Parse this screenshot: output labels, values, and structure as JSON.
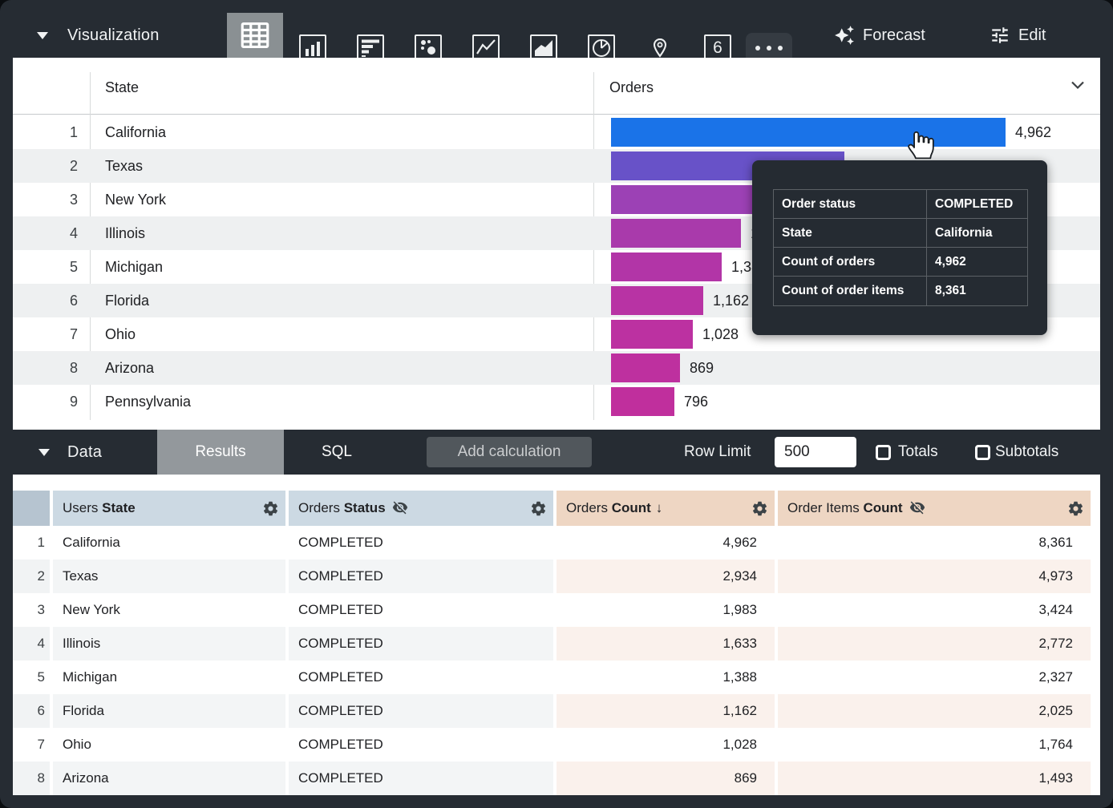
{
  "viz_toolbar": {
    "title": "Visualization",
    "forecast_label": "Forecast",
    "edit_label": "Edit",
    "single_value_icon_label": "6",
    "icons": [
      "table",
      "column-chart",
      "bar-chart",
      "scatter-chart",
      "line-chart",
      "area-chart",
      "pie-chart",
      "map-pin",
      "single-value",
      "more-options"
    ],
    "selected_icon": "table"
  },
  "viz_table": {
    "state_header": "State",
    "orders_header": "Orders",
    "max_value": 4962,
    "rows": [
      {
        "num": "1",
        "state": "California",
        "value": 4962,
        "label": "4,962",
        "color": "#1a73e8"
      },
      {
        "num": "2",
        "state": "Texas",
        "value": 2934,
        "label": "2,934",
        "color": "#6852c8"
      },
      {
        "num": "3",
        "state": "New York",
        "value": 1983,
        "label": "1,983",
        "color": "#9c41b5"
      },
      {
        "num": "4",
        "state": "Illinois",
        "value": 1633,
        "label": "1,633",
        "color": "#a93aab"
      },
      {
        "num": "5",
        "state": "Michigan",
        "value": 1388,
        "label": "1,388",
        "color": "#b235a7"
      },
      {
        "num": "6",
        "state": "Florida",
        "value": 1162,
        "label": "1,162",
        "color": "#b833a4"
      },
      {
        "num": "7",
        "state": "Ohio",
        "value": 1028,
        "label": "1,028",
        "color": "#bc31a1"
      },
      {
        "num": "8",
        "state": "Arizona",
        "value": 869,
        "label": "869",
        "color": "#be309f"
      },
      {
        "num": "9",
        "state": "Pennsylvania",
        "value": 796,
        "label": "796",
        "color": "#c02f9d"
      }
    ]
  },
  "tooltip": {
    "rows": [
      {
        "label": "Order status",
        "value": "COMPLETED"
      },
      {
        "label": "State",
        "value": "California"
      },
      {
        "label": "Count of orders",
        "value": "4,962"
      },
      {
        "label": "Count of order items",
        "value": "8,361"
      }
    ]
  },
  "data_toolbar": {
    "title": "Data",
    "tabs": [
      {
        "label": "Results",
        "active": true
      },
      {
        "label": "SQL",
        "active": false
      }
    ],
    "add_calculation_label": "Add calculation",
    "row_limit_label": "Row Limit",
    "row_limit_value": "500",
    "totals_label": "Totals",
    "totals_checked": false,
    "subtotals_label": "Subtotals",
    "subtotals_checked": false
  },
  "data_table": {
    "columns": [
      {
        "prefix": "Users",
        "name": "State",
        "type": "dimension",
        "hidden_from_vis": false,
        "sorted": null
      },
      {
        "prefix": "Orders",
        "name": "Status",
        "type": "dimension",
        "hidden_from_vis": true,
        "sorted": null
      },
      {
        "prefix": "Orders",
        "name": "Count",
        "type": "measure",
        "hidden_from_vis": false,
        "sorted": "desc"
      },
      {
        "prefix": "Order Items",
        "name": "Count",
        "type": "measure",
        "hidden_from_vis": true,
        "sorted": null
      }
    ],
    "sort_arrow": "↓",
    "rows": [
      {
        "num": "1",
        "cells": [
          "California",
          "COMPLETED",
          "4,962",
          "8,361"
        ]
      },
      {
        "num": "2",
        "cells": [
          "Texas",
          "COMPLETED",
          "2,934",
          "4,973"
        ]
      },
      {
        "num": "3",
        "cells": [
          "New York",
          "COMPLETED",
          "1,983",
          "3,424"
        ]
      },
      {
        "num": "4",
        "cells": [
          "Illinois",
          "COMPLETED",
          "1,633",
          "2,772"
        ]
      },
      {
        "num": "5",
        "cells": [
          "Michigan",
          "COMPLETED",
          "1,388",
          "2,327"
        ]
      },
      {
        "num": "6",
        "cells": [
          "Florida",
          "COMPLETED",
          "1,162",
          "2,025"
        ]
      },
      {
        "num": "7",
        "cells": [
          "Ohio",
          "COMPLETED",
          "1,028",
          "1,764"
        ]
      },
      {
        "num": "8",
        "cells": [
          "Arizona",
          "COMPLETED",
          "869",
          "1,493"
        ]
      }
    ]
  },
  "chart_data": {
    "type": "bar",
    "orientation": "horizontal",
    "title": "Orders",
    "categories": [
      "California",
      "Texas",
      "New York",
      "Illinois",
      "Michigan",
      "Florida",
      "Ohio",
      "Arizona",
      "Pennsylvania"
    ],
    "values": [
      4962,
      2934,
      1983,
      1633,
      1388,
      1162,
      1028,
      869,
      796
    ],
    "xlim": [
      0,
      4962
    ],
    "colors": [
      "#1a73e8",
      "#6852c8",
      "#9c41b5",
      "#a93aab",
      "#b235a7",
      "#b833a4",
      "#bc31a1",
      "#be309f",
      "#c02f9d"
    ]
  }
}
